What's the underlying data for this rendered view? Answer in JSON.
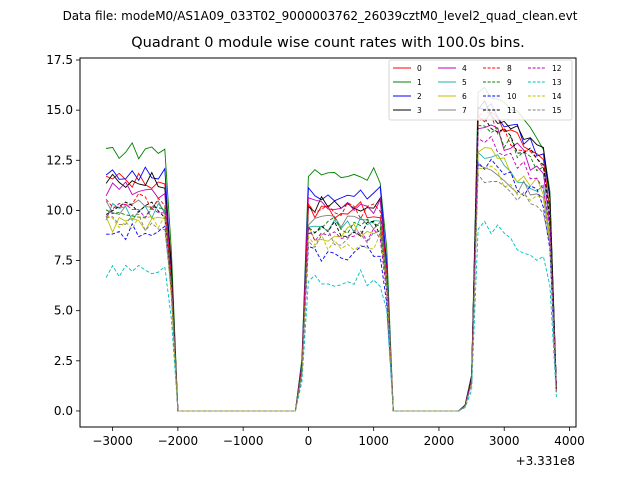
{
  "chart_data": {
    "type": "line",
    "suptitle": "Data file: modeM0/AS1A09_033T02_9000003762_26039cztM0_level2_quad_clean.evt",
    "title": "Quadrant 0 module wise count rates with 100.0s bins.",
    "xlabel": "",
    "ylabel": "",
    "x_offset_label": "+3.331e8",
    "xlim": [
      -3500,
      4100
    ],
    "ylim": [
      -0.8,
      17.6
    ],
    "xticks": [
      -3000,
      -2000,
      -1000,
      0,
      1000,
      2000,
      3000,
      4000
    ],
    "xtick_labels": [
      "−3000",
      "−2000",
      "−1000",
      "0",
      "1000",
      "2000",
      "3000",
      "4000"
    ],
    "yticks": [
      0.0,
      2.5,
      5.0,
      7.5,
      10.0,
      12.5,
      15.0,
      17.5
    ],
    "ytick_labels": [
      "0.0",
      "2.5",
      "5.0",
      "7.5",
      "10.0",
      "12.5",
      "15.0",
      "17.5"
    ],
    "legend_position": "top-right",
    "segments": [
      {
        "start": -3100,
        "end": -2100,
        "gap_end": -2000
      },
      {
        "start": -100,
        "end": 1200,
        "gap_end": 1300
      },
      {
        "start": 2400,
        "end": 3750,
        "gap_end": null
      }
    ],
    "gap_x": [
      -1000,
      0,
      2000
    ],
    "series": [
      {
        "name": "0",
        "color": "#ff0000",
        "dash": "solid",
        "levels": [
          11.5,
          10.0,
          13.9
        ]
      },
      {
        "name": "1",
        "color": "#008000",
        "dash": "solid",
        "levels": [
          13.0,
          11.8,
          15.0
        ]
      },
      {
        "name": "2",
        "color": "#0000ff",
        "dash": "solid",
        "levels": [
          11.8,
          10.8,
          14.3
        ]
      },
      {
        "name": "3",
        "color": "#000000",
        "dash": "solid",
        "levels": [
          11.5,
          10.3,
          14.2
        ]
      },
      {
        "name": "4",
        "color": "#bf00bf",
        "dash": "solid",
        "levels": [
          11.0,
          10.3,
          13.3
        ]
      },
      {
        "name": "5",
        "color": "#20b2aa",
        "dash": "solid",
        "levels": [
          9.9,
          9.3,
          12.2
        ]
      },
      {
        "name": "6",
        "color": "#bfbf00",
        "dash": "solid",
        "levels": [
          9.3,
          8.9,
          12.2
        ]
      },
      {
        "name": "7",
        "color": "#808080",
        "dash": "solid",
        "levels": [
          10.2,
          9.4,
          11.6
        ]
      },
      {
        "name": "8",
        "color": "#ff0000",
        "dash": "dashed",
        "levels": [
          10.4,
          10.0,
          13.8
        ]
      },
      {
        "name": "9",
        "color": "#008000",
        "dash": "dashed",
        "levels": [
          10.0,
          9.3,
          13.4
        ]
      },
      {
        "name": "10",
        "color": "#0000ff",
        "dash": "dashed",
        "levels": [
          8.9,
          7.9,
          11.7
        ]
      },
      {
        "name": "11",
        "color": "#000000",
        "dash": "dashed",
        "levels": [
          10.0,
          9.0,
          13.6
        ]
      },
      {
        "name": "12",
        "color": "#bf00bf",
        "dash": "dashed",
        "levels": [
          10.0,
          8.9,
          12.8
        ]
      },
      {
        "name": "13",
        "color": "#00bfbf",
        "dash": "dashed",
        "levels": [
          7.1,
          6.6,
          8.6
        ]
      },
      {
        "name": "14",
        "color": "#bfbf00",
        "dash": "dashed",
        "levels": [
          9.4,
          8.4,
          11.4
        ]
      },
      {
        "name": "15",
        "color": "#808080",
        "dash": "dashed",
        "levels": [
          9.4,
          8.6,
          11.1
        ]
      }
    ]
  }
}
